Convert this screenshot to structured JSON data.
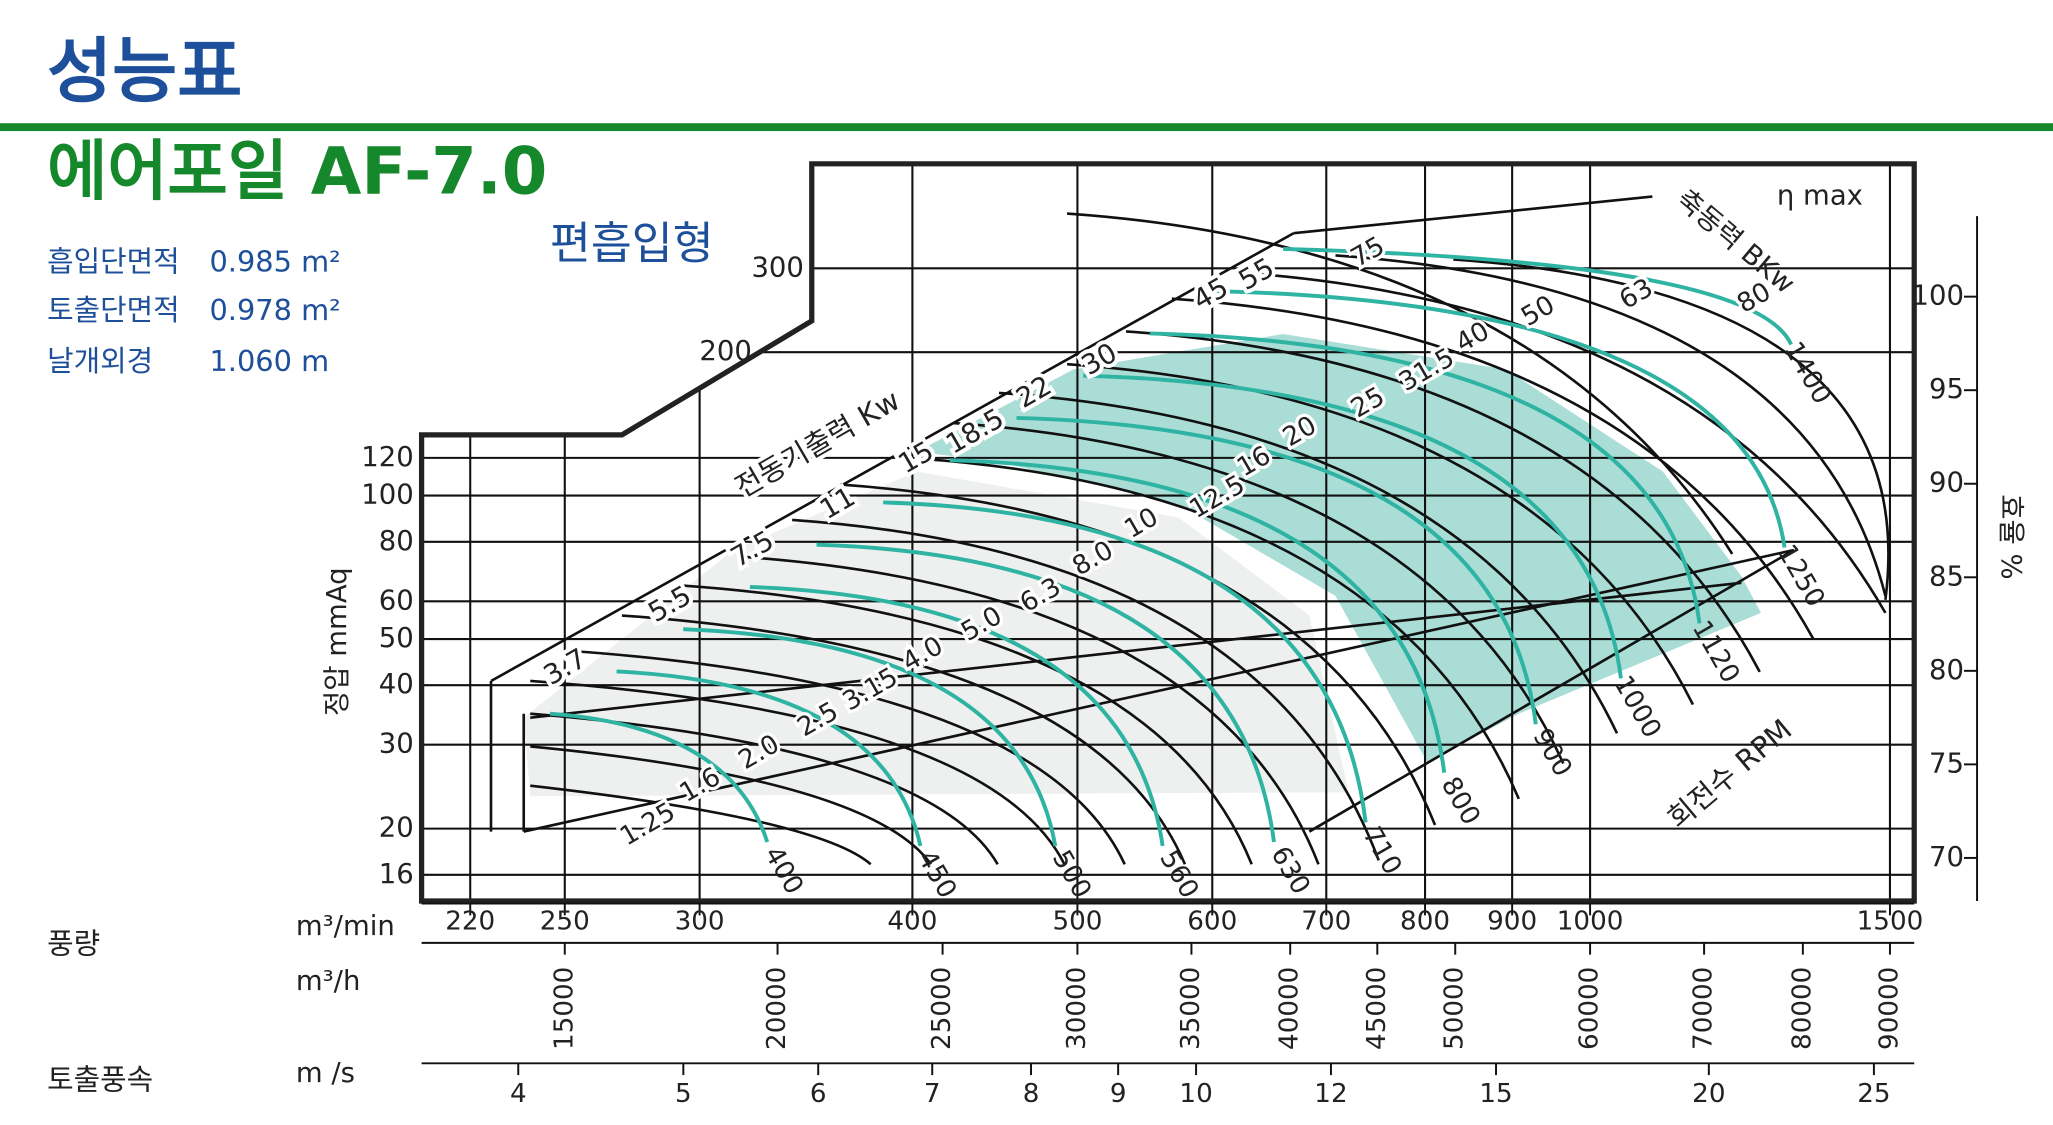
{
  "header": {
    "title": "성능표",
    "model": "에어포일 AF-7.0",
    "type_label": "편흡입형"
  },
  "specs": [
    {
      "label": "흡입단면적",
      "value": "0.985 m²"
    },
    {
      "label": "토출단면적",
      "value": "0.978 m²"
    },
    {
      "label": "날개외경",
      "value": "1.060 m"
    }
  ],
  "chart_data": {
    "type": "fan-performance",
    "ylabel": "정압 mmAq",
    "ylog": true,
    "ylim": [
      14.1,
      497
    ],
    "yticks": [
      16,
      20,
      30,
      40,
      50,
      60,
      80,
      100,
      120,
      200,
      300
    ],
    "y2label": "효율 %",
    "y2lim": [
      67.7,
      107.1
    ],
    "y2ticks": [
      70,
      75,
      80,
      85,
      90,
      95,
      100
    ],
    "grid": true,
    "flow_min": {
      "label": "풍량",
      "unit": "m³/min",
      "log": true,
      "xlim": [
        206,
        1550
      ],
      "xticks": [
        220,
        250,
        300,
        400,
        500,
        600,
        700,
        800,
        900,
        1000,
        1500
      ]
    },
    "flow_h": {
      "unit": "m³/h",
      "log": true,
      "xlim": [
        12360,
        93000
      ],
      "xticks": [
        15000,
        20000,
        25000,
        30000,
        35000,
        40000,
        45000,
        50000,
        60000,
        70000,
        80000,
        90000
      ]
    },
    "velocity": {
      "label": "토출풍속",
      "unit": "m /s",
      "log": true,
      "xlim": [
        3.51,
        26.4
      ],
      "xticks": [
        4,
        5,
        6,
        7,
        8,
        9,
        10,
        12,
        15,
        20,
        25
      ]
    },
    "motor": {
      "title": "전동기출력 Kw",
      "labels": [
        "3.7",
        "5.5",
        "7.5",
        "11",
        "15",
        "18.5",
        "22",
        "30",
        "45",
        "55"
      ]
    },
    "bkw": {
      "title": "축동력 BKw",
      "eta": "η max",
      "labels": [
        "1.25",
        "1.6",
        "2.0",
        "2.5",
        "3.15",
        "4.0",
        "5.0",
        "6.3",
        "8.0",
        "10",
        "12.5",
        "16",
        "20",
        "25",
        "31.5",
        "40",
        "50",
        "63",
        "75",
        "80"
      ]
    },
    "rpm": {
      "title": "회전수 RPM",
      "labels": [
        "400",
        "450",
        "500",
        "560",
        "630",
        "710",
        "800",
        "900",
        "1000",
        "1120",
        "1250",
        "1400"
      ]
    }
  }
}
